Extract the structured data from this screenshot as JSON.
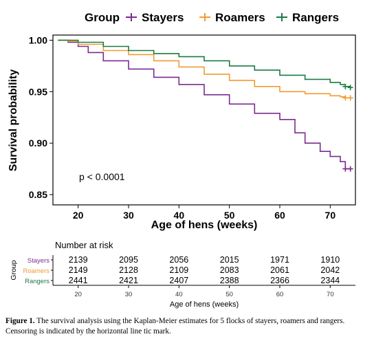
{
  "chart_data": {
    "type": "line",
    "subtype": "kaplan-meier",
    "legend": {
      "title": "Group",
      "position": "top",
      "entries": [
        "Stayers",
        "Roamers",
        "Rangers"
      ]
    },
    "xlabel": "Age of hens (weeks)",
    "ylabel": "Survival probability",
    "xlim": [
      15,
      75
    ],
    "ylim": [
      0.84,
      1.005
    ],
    "xticks": [
      20,
      30,
      40,
      50,
      60,
      70
    ],
    "yticks": [
      0.85,
      0.9,
      0.95,
      1.0
    ],
    "ytick_labels": [
      "0.85",
      "0.90",
      "0.95",
      "1.00"
    ],
    "annotation": "p < 0.0001",
    "censor_marks": "+",
    "series": [
      {
        "name": "Stayers",
        "color": "#7b2a8f",
        "x": [
          16,
          18,
          20,
          22,
          25,
          30,
          35,
          40,
          45,
          50,
          55,
          60,
          63,
          65,
          68,
          70,
          72,
          73,
          74
        ],
        "y": [
          1.0,
          0.998,
          0.994,
          0.988,
          0.98,
          0.972,
          0.964,
          0.957,
          0.947,
          0.938,
          0.929,
          0.923,
          0.91,
          0.9,
          0.892,
          0.887,
          0.882,
          0.875,
          0.875
        ]
      },
      {
        "name": "Roamers",
        "color": "#f39a30",
        "x": [
          16,
          18,
          20,
          25,
          30,
          35,
          40,
          45,
          50,
          55,
          60,
          65,
          70,
          72,
          73,
          74
        ],
        "y": [
          1.0,
          0.999,
          0.996,
          0.99,
          0.986,
          0.98,
          0.974,
          0.967,
          0.961,
          0.955,
          0.95,
          0.948,
          0.946,
          0.945,
          0.944,
          0.944
        ]
      },
      {
        "name": "Rangers",
        "color": "#1a7a42",
        "x": [
          16,
          18,
          20,
          25,
          30,
          35,
          40,
          45,
          50,
          55,
          60,
          65,
          70,
          72,
          73,
          74
        ],
        "y": [
          1.0,
          1.0,
          0.998,
          0.994,
          0.99,
          0.987,
          0.984,
          0.98,
          0.975,
          0.971,
          0.966,
          0.962,
          0.959,
          0.957,
          0.955,
          0.954
        ]
      }
    ],
    "risk_table": {
      "title": "Number at risk",
      "ylabel": "Group",
      "xlabel": "Age of hens (weeks)",
      "times": [
        20,
        30,
        40,
        50,
        60,
        70
      ],
      "rows": [
        {
          "name": "Stayers",
          "color": "#7b2a8f",
          "values": [
            "2139",
            "2095",
            "2056",
            "2015",
            "1971",
            "1910"
          ]
        },
        {
          "name": "Roamers",
          "color": "#f39a30",
          "values": [
            "2149",
            "2128",
            "2109",
            "2083",
            "2061",
            "2042"
          ]
        },
        {
          "name": "Rangers",
          "color": "#1a7a42",
          "values": [
            "2441",
            "2421",
            "2407",
            "2388",
            "2366",
            "2344"
          ]
        }
      ]
    }
  },
  "caption": {
    "label": "Figure 1.",
    "text": "The survival analysis using the Kaplan-Meier estimates for 5 flocks of stayers, roamers and rangers. Censoring is indicated by the horizontal line tic mark."
  }
}
